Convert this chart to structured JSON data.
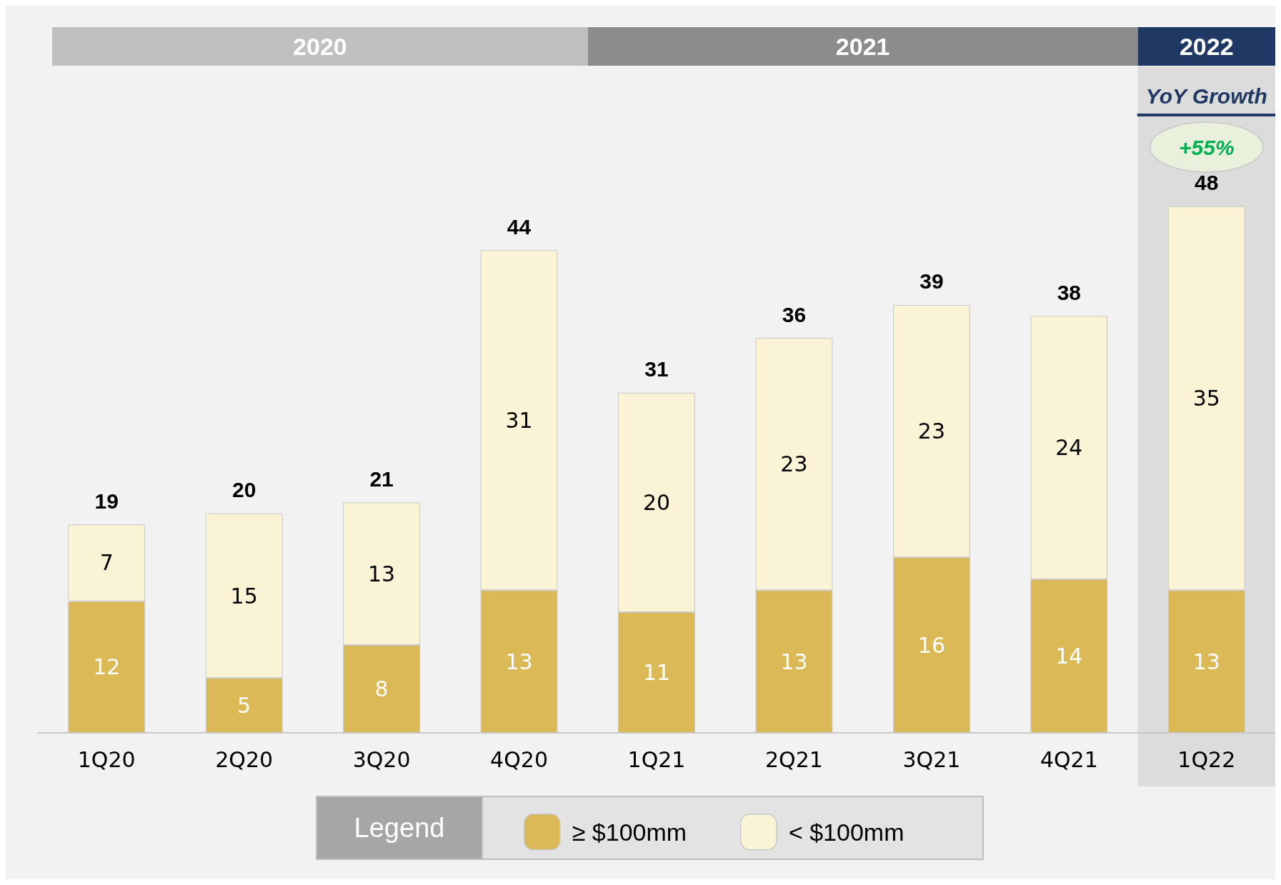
{
  "chart_data": {
    "type": "bar",
    "stacked": true,
    "categories": [
      "1Q20",
      "2Q20",
      "3Q20",
      "4Q20",
      "1Q21",
      "2Q21",
      "3Q21",
      "4Q21",
      "1Q22"
    ],
    "series": [
      {
        "name": "≥ $100mm",
        "color": "#dbb957",
        "values": [
          12,
          5,
          8,
          13,
          11,
          13,
          16,
          14,
          13
        ]
      },
      {
        "name": "< $100mm",
        "color": "#fbf3d6",
        "values": [
          7,
          15,
          13,
          31,
          20,
          23,
          23,
          24,
          35
        ]
      }
    ],
    "totals": [
      "19",
      "20",
      "21",
      "44",
      "31",
      "36",
      "39",
      "38",
      "48"
    ],
    "data_labels": true,
    "legend": "bottom",
    "legend_title": "Legend",
    "bands": [
      {
        "axis": "x",
        "from": "1Q22",
        "to": "1Q22",
        "color": "#dcdcdc"
      }
    ],
    "annotations": [
      "2020",
      "2021",
      "2022",
      "YoY Growth",
      "+55%"
    ]
  }
}
